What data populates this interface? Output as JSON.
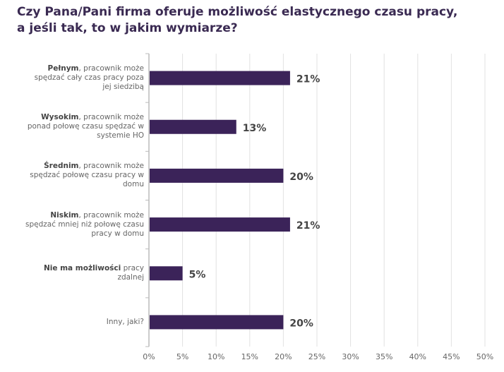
{
  "chart_data": {
    "type": "bar",
    "orientation": "horizontal",
    "title": [
      "Czy Pana/Pani firma oferuje możliwość elastycznego czasu pracy,",
      "a jeśli tak, to w jakim wymiarze?"
    ],
    "categories": [
      {
        "bold": "Pełnym",
        "rest": ", pracownik może spędzać cały czas pracy poza jej siedzibą"
      },
      {
        "bold": "Wysokim",
        "rest": ", pracownik może ponad połowę czasu spędzać w systemie HO"
      },
      {
        "bold": "Średnim",
        "rest": ", pracownik może spędzać połowę czasu pracy w domu"
      },
      {
        "bold": "Niskim",
        "rest": ", pracownik może spędzać mniej niż połowę czasu pracy w domu"
      },
      {
        "bold": "Nie ma możliwości",
        "rest": " pracy zdalnej"
      },
      {
        "bold": "",
        "rest": "Inny, jaki?"
      }
    ],
    "values": [
      21,
      13,
      20,
      21,
      5,
      20
    ],
    "data_labels": [
      "21%",
      "13%",
      "20%",
      "21%",
      "5%",
      "20%"
    ],
    "xlim": [
      0,
      50
    ],
    "xticks": [
      "0%",
      "5%",
      "10%",
      "15%",
      "20%",
      "25%",
      "30%",
      "35%",
      "40%",
      "45%",
      "50%"
    ],
    "grid": true,
    "bar_color": "#3b2359"
  }
}
